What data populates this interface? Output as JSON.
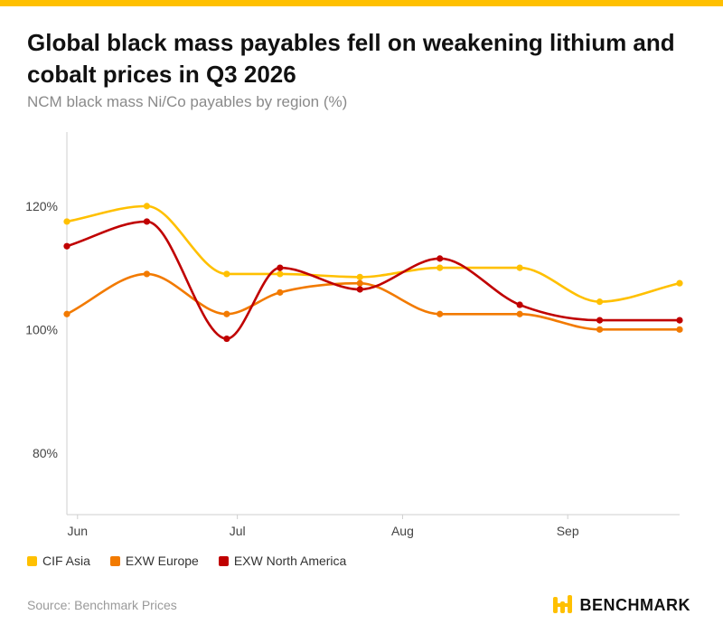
{
  "header": {
    "title": "Global black mass payables fell on weakening lithium and cobalt prices in Q3 2026",
    "subtitle": "NCM black mass Ni/Co payables by region (%)"
  },
  "footer": {
    "source": "Source: Benchmark Prices",
    "brand": "BENCHMARK",
    "brand_icon": "benchmark-logo-icon"
  },
  "colors": {
    "accent": "#FFC000",
    "cif_asia": "#FFC000",
    "exw_europe": "#F27A00",
    "exw_north_america": "#C00000"
  },
  "chart_data": {
    "type": "line",
    "title": "Global black mass payables fell on weakening lithium and cobalt prices in Q3 2026",
    "subtitle": "NCM black mass Ni/Co payables by region (%)",
    "xlabel": "",
    "ylabel": "",
    "x": [
      "2026-05-30",
      "2026-06-14",
      "2026-06-29",
      "2026-07-09",
      "2026-07-24",
      "2026-08-08",
      "2026-08-23",
      "2026-09-07",
      "2026-09-22"
    ],
    "x_ticks": [
      {
        "date": "2026-06-01",
        "label": "Jun"
      },
      {
        "date": "2026-07-01",
        "label": "Jul"
      },
      {
        "date": "2026-08-01",
        "label": "Aug"
      },
      {
        "date": "2026-09-01",
        "label": "Sep"
      }
    ],
    "xlim": [
      "2026-05-30",
      "2026-09-22"
    ],
    "y_ticks": [
      {
        "value": 80,
        "label": "80%"
      },
      {
        "value": 100,
        "label": "100%"
      },
      {
        "value": 120,
        "label": "120%"
      }
    ],
    "ylim": [
      70,
      132
    ],
    "grid": false,
    "legend_position": "bottom-left",
    "series": [
      {
        "name": "CIF Asia",
        "color": "#FFC000",
        "values": [
          117.5,
          120,
          109,
          109,
          108.5,
          110,
          110,
          104.5,
          107.5
        ]
      },
      {
        "name": "EXW Europe",
        "color": "#F27A00",
        "values": [
          102.5,
          109,
          102.5,
          106,
          107.5,
          102.5,
          102.5,
          100,
          100
        ]
      },
      {
        "name": "EXW North America",
        "color": "#C00000",
        "values": [
          113.5,
          117.5,
          98.5,
          110,
          106.5,
          111.5,
          104,
          101.5,
          101.5
        ]
      }
    ]
  }
}
